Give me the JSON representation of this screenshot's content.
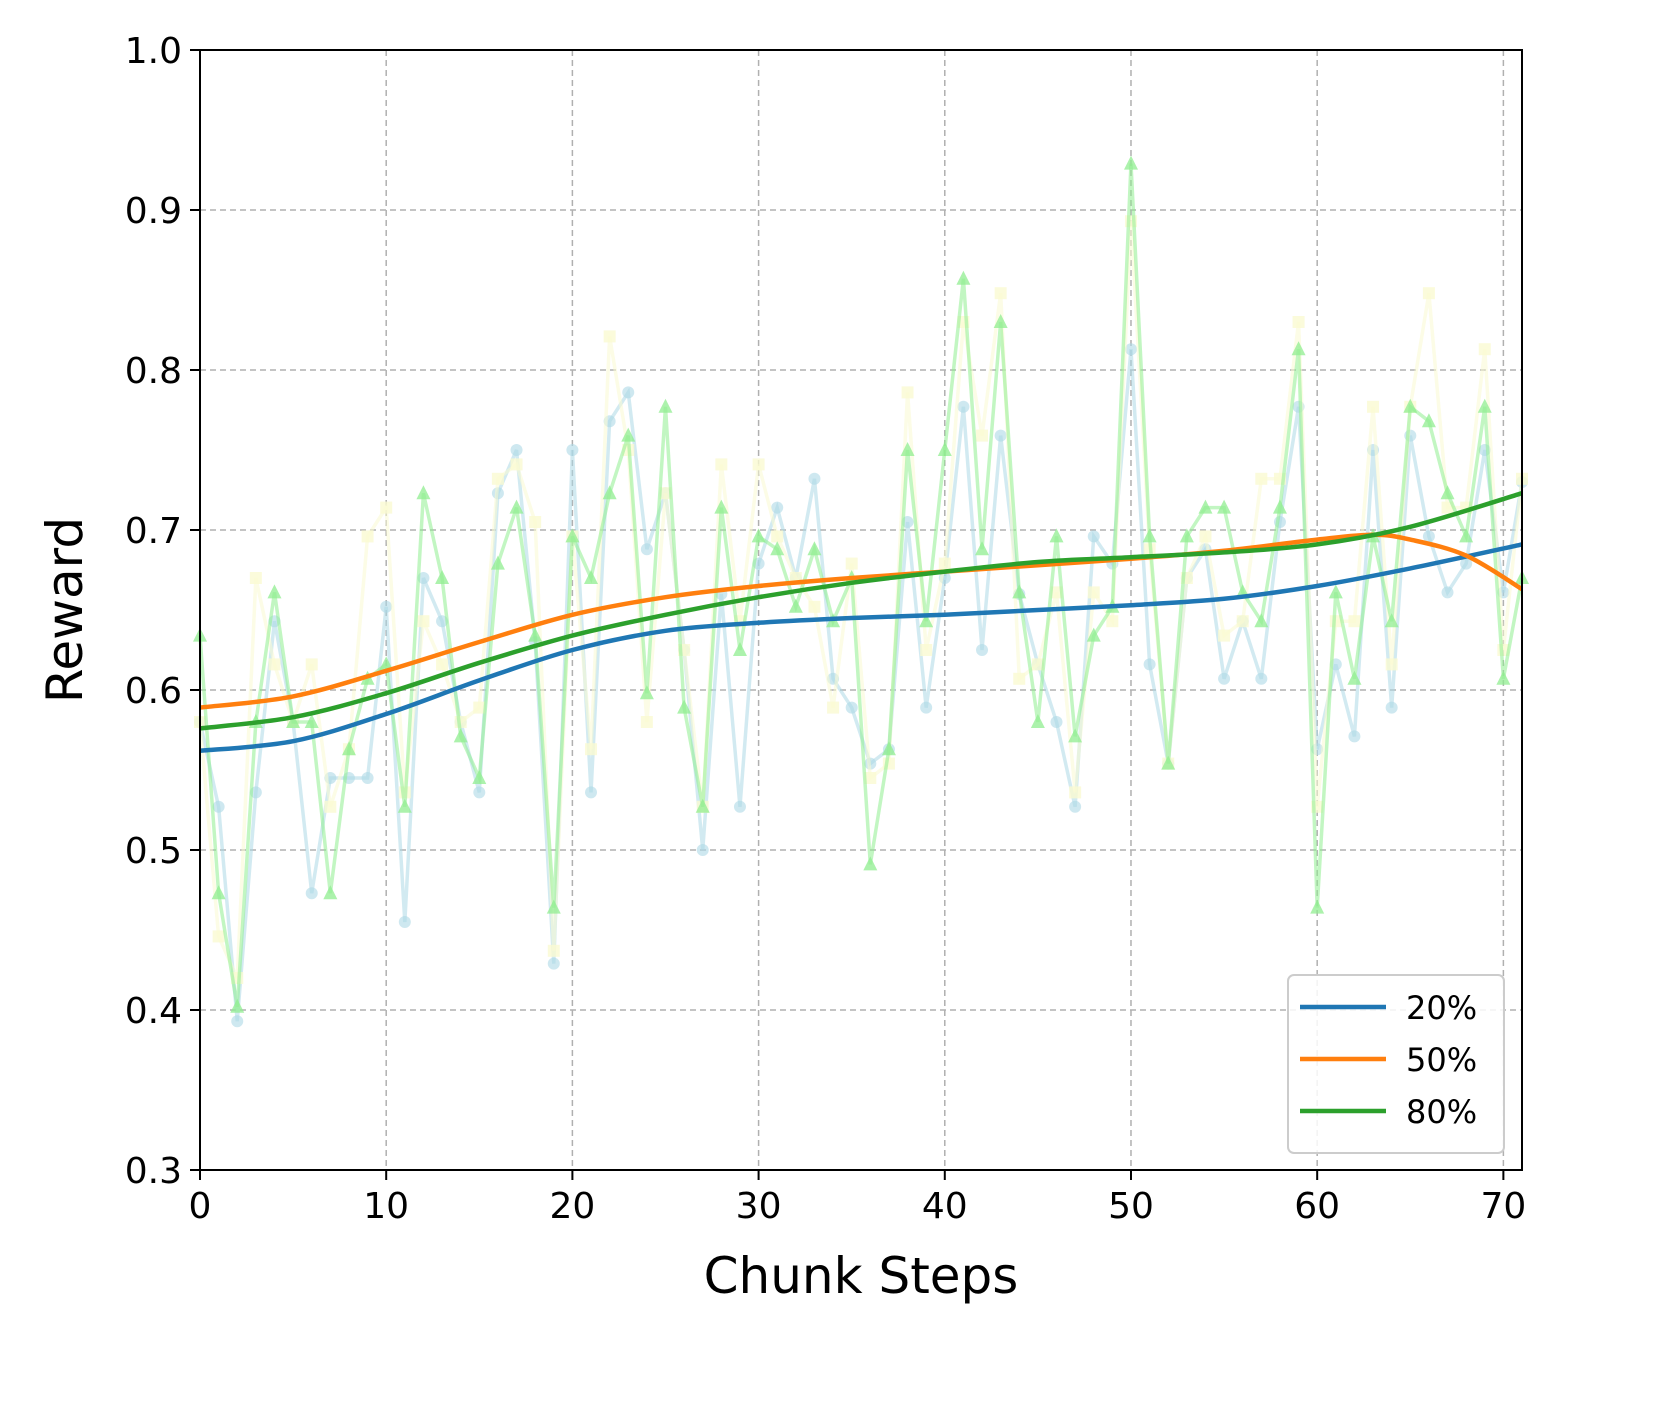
{
  "chart_data": {
    "type": "line",
    "title": "",
    "xlabel": "Chunk Steps",
    "ylabel": "Reward",
    "xlim": [
      0,
      71
    ],
    "ylim": [
      0.3,
      1.0
    ],
    "xticks": [
      "0",
      "10",
      "20",
      "30",
      "40",
      "50",
      "60",
      "70"
    ],
    "xtick_values": [
      0,
      10,
      20,
      30,
      40,
      50,
      60,
      70
    ],
    "yticks": [
      "0.3",
      "0.4",
      "0.5",
      "0.6",
      "0.7",
      "0.8",
      "0.9",
      "1.0"
    ],
    "ytick_values": [
      0.3,
      0.4,
      0.5,
      0.6,
      0.7,
      0.8,
      0.9,
      1.0
    ],
    "grid": true,
    "legend_position": "bottom-right",
    "raw_series": [
      {
        "name": "20% raw",
        "color": "#add8e6",
        "marker": "circle",
        "values": [
          0.58,
          0.527,
          0.393,
          0.536,
          0.643,
          0.58,
          0.473,
          0.545,
          0.545,
          0.545,
          0.652,
          0.455,
          0.67,
          0.643,
          0.58,
          0.536,
          0.723,
          0.75,
          0.63,
          0.429,
          0.75,
          0.536,
          0.768,
          0.786,
          0.688,
          0.723,
          0.625,
          0.5,
          0.66,
          0.527,
          0.679,
          0.714,
          0.67,
          0.732,
          0.607,
          0.589,
          0.554,
          0.563,
          0.705,
          0.589,
          0.67,
          0.777,
          0.625,
          0.759,
          0.66,
          0.616,
          0.58,
          0.527,
          0.696,
          0.679,
          0.813,
          0.616,
          0.554,
          0.67,
          0.688,
          0.607,
          0.643,
          0.607,
          0.705,
          0.777,
          0.563,
          0.616,
          0.571,
          0.75,
          0.589,
          0.759,
          0.696,
          0.661,
          0.679,
          0.75,
          0.661,
          0.73
        ]
      },
      {
        "name": "50% raw",
        "color": "#fafad2",
        "marker": "square",
        "values": [
          0.58,
          0.446,
          0.42,
          0.67,
          0.616,
          0.58,
          0.616,
          0.527,
          0.563,
          0.696,
          0.714,
          0.536,
          0.643,
          0.616,
          0.58,
          0.589,
          0.732,
          0.741,
          0.705,
          0.437,
          0.696,
          0.563,
          0.821,
          0.75,
          0.58,
          0.723,
          0.625,
          0.527,
          0.741,
          0.643,
          0.741,
          0.696,
          0.67,
          0.652,
          0.589,
          0.679,
          0.545,
          0.554,
          0.786,
          0.625,
          0.679,
          0.83,
          0.759,
          0.848,
          0.607,
          0.616,
          0.661,
          0.536,
          0.661,
          0.643,
          0.893,
          0.688,
          0.554,
          0.67,
          0.696,
          0.634,
          0.643,
          0.732,
          0.732,
          0.83,
          0.527,
          0.643,
          0.643,
          0.777,
          0.616,
          0.777,
          0.848,
          0.714,
          0.714,
          0.813,
          0.625,
          0.732
        ]
      },
      {
        "name": "80% raw",
        "color": "#90ee90",
        "marker": "triangle",
        "values": [
          0.634,
          0.473,
          0.402,
          0.58,
          0.661,
          0.58,
          0.58,
          0.473,
          0.563,
          0.607,
          0.616,
          0.527,
          0.723,
          0.67,
          0.571,
          0.545,
          0.679,
          0.714,
          0.634,
          0.464,
          0.696,
          0.67,
          0.723,
          0.759,
          0.598,
          0.777,
          0.589,
          0.527,
          0.714,
          0.625,
          0.696,
          0.688,
          0.652,
          0.688,
          0.643,
          0.67,
          0.491,
          0.563,
          0.75,
          0.643,
          0.75,
          0.857,
          0.688,
          0.83,
          0.661,
          0.58,
          0.696,
          0.571,
          0.634,
          0.652,
          0.929,
          0.696,
          0.554,
          0.696,
          0.714,
          0.714,
          0.661,
          0.643,
          0.714,
          0.813,
          0.464,
          0.661,
          0.607,
          0.696,
          0.643,
          0.777,
          0.768,
          0.723,
          0.696,
          0.777,
          0.607,
          0.67
        ]
      }
    ],
    "series": [
      {
        "name": "20%",
        "color": "#1f77b4",
        "x": [
          0,
          5,
          10,
          15,
          20,
          25,
          30,
          35,
          40,
          45,
          50,
          55,
          60,
          65,
          71
        ],
        "values": [
          0.562,
          0.568,
          0.585,
          0.606,
          0.625,
          0.637,
          0.642,
          0.645,
          0.647,
          0.65,
          0.653,
          0.657,
          0.665,
          0.676,
          0.691
        ]
      },
      {
        "name": "50%",
        "color": "#ff7f0e",
        "x": [
          0,
          5,
          10,
          15,
          20,
          25,
          30,
          35,
          40,
          45,
          50,
          55,
          60,
          63,
          65,
          68,
          71
        ],
        "values": [
          0.589,
          0.596,
          0.612,
          0.63,
          0.647,
          0.658,
          0.665,
          0.67,
          0.674,
          0.678,
          0.682,
          0.687,
          0.694,
          0.697,
          0.694,
          0.684,
          0.663
        ]
      },
      {
        "name": "80%",
        "color": "#2ca02c",
        "x": [
          0,
          5,
          10,
          15,
          20,
          25,
          30,
          35,
          40,
          45,
          50,
          55,
          60,
          65,
          71
        ],
        "values": [
          0.576,
          0.583,
          0.598,
          0.617,
          0.634,
          0.647,
          0.658,
          0.667,
          0.674,
          0.68,
          0.683,
          0.686,
          0.691,
          0.702,
          0.723
        ]
      }
    ]
  }
}
